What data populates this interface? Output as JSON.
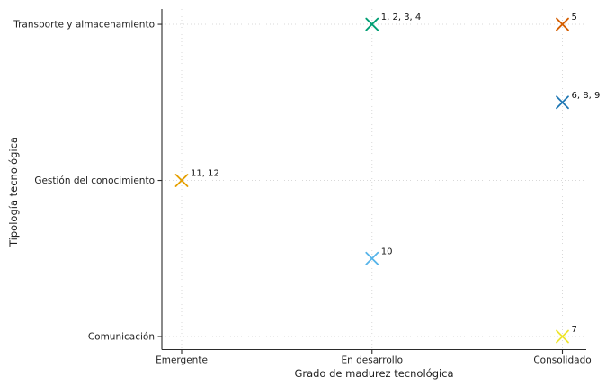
{
  "chart_data": {
    "type": "scatter",
    "title": "",
    "xlabel": "Grado de madurez tecnológica",
    "ylabel": "Tipología tecnológica",
    "grid": "dotted",
    "marker": "x",
    "legend": "none",
    "xlim": [
      0.9,
      3.13
    ],
    "ylim": [
      0.92,
      3.1
    ],
    "x_categories": [
      {
        "value": 1,
        "label": "Emergente"
      },
      {
        "value": 2,
        "label": "En desarrollo"
      },
      {
        "value": 3,
        "label": "Consolidado"
      }
    ],
    "y_categories": [
      {
        "value": 1,
        "label": "Comunicación"
      },
      {
        "value": 2,
        "label": "Gestión del conocimiento"
      },
      {
        "value": 3,
        "label": "Transporte y almacenamiento"
      }
    ],
    "points": [
      {
        "label": "1, 2, 3, 4",
        "x": 2,
        "y": 3,
        "color": "#009E73"
      },
      {
        "label": "5",
        "x": 3,
        "y": 3,
        "color": "#D55E00"
      },
      {
        "label": "6, 8, 9",
        "x": 3,
        "y": 2.5,
        "color": "#1F77B4"
      },
      {
        "label": "7",
        "x": 3,
        "y": 1,
        "color": "#EDE42F"
      },
      {
        "label": "10",
        "x": 2,
        "y": 1.5,
        "color": "#56B4E9"
      },
      {
        "label": "11, 12",
        "x": 1,
        "y": 2,
        "color": "#E69F00"
      }
    ]
  }
}
